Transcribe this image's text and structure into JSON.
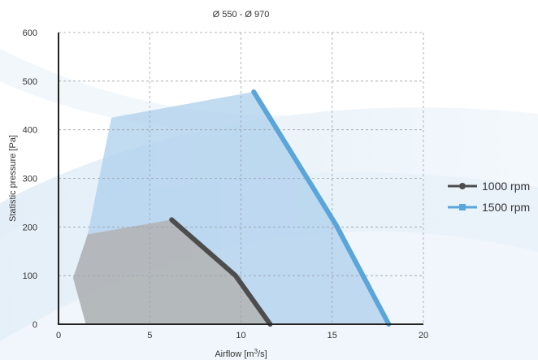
{
  "chart_data": {
    "type": "line",
    "title": "Ø 550 - Ø 970",
    "xlabel": "Airflow [m³/s]",
    "ylabel": "Statistic pressure [Pa]",
    "xlim": [
      0,
      20
    ],
    "ylim": [
      0,
      600
    ],
    "xticks": [
      "0",
      "5",
      "10",
      "15",
      "20"
    ],
    "yticks": [
      "0",
      "100",
      "200",
      "300",
      "400",
      "500",
      "600"
    ],
    "grid": true,
    "legend_position": "right",
    "series": [
      {
        "name": "1000 rpm",
        "color": "#4d4d4d",
        "marker": "circle",
        "x": [
          6.2,
          9.7,
          11.6
        ],
        "y": [
          215,
          100,
          0
        ],
        "region": {
          "fill": "#b3b3b3",
          "points": [
            [
              1.5,
              0
            ],
            [
              0.8,
              95
            ],
            [
              1.6,
              185
            ],
            [
              6.2,
              215
            ],
            [
              9.7,
              100
            ],
            [
              11.6,
              0
            ]
          ]
        }
      },
      {
        "name": "1500 rpm",
        "color": "#5aa5d9",
        "marker": "square",
        "x": [
          10.7,
          15.2,
          18.1
        ],
        "y": [
          478,
          205,
          0
        ],
        "region": {
          "fill": "#b2d2ee",
          "points": [
            [
              1.5,
              0
            ],
            [
              0.8,
              95
            ],
            [
              1.6,
              185
            ],
            [
              2.9,
              425
            ],
            [
              10.7,
              478
            ],
            [
              15.2,
              205
            ],
            [
              18.1,
              0
            ]
          ]
        }
      }
    ]
  }
}
